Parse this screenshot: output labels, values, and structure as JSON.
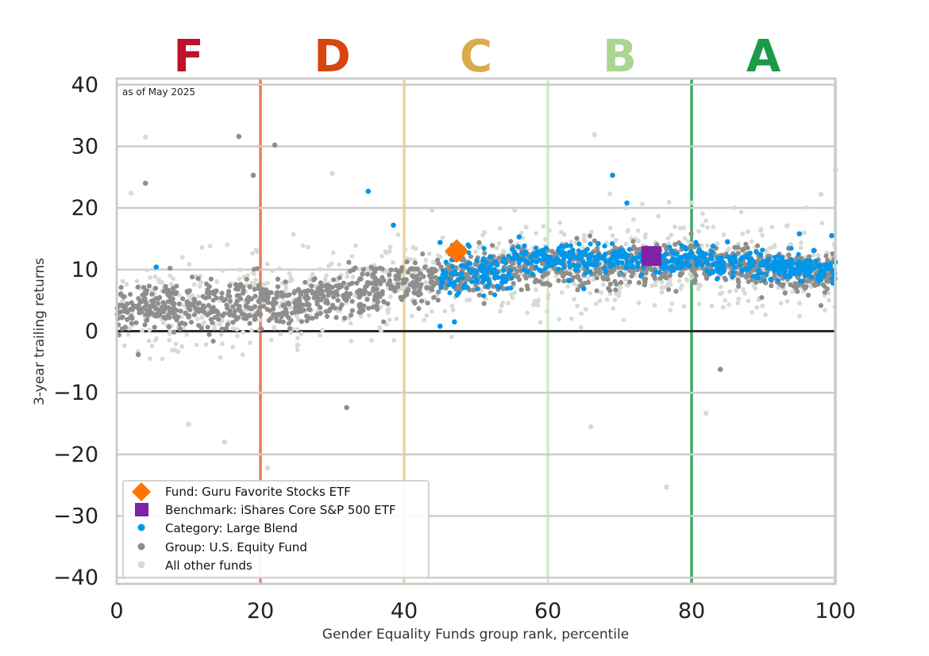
{
  "chart_data": {
    "type": "scatter",
    "xlabel": "Gender Equality Funds group rank, percentile",
    "ylabel": "3-year trailing returns",
    "xlim": [
      0,
      100
    ],
    "ylim": [
      -41,
      41
    ],
    "x_ticks": [
      0,
      20,
      40,
      60,
      80,
      100
    ],
    "y_ticks": [
      -40,
      -30,
      -20,
      -10,
      0,
      10,
      20,
      30,
      40
    ],
    "x_tick_labels": [
      "0",
      "20",
      "40",
      "60",
      "80",
      "100"
    ],
    "y_tick_labels": [
      "−40",
      "−30",
      "−20",
      "−10",
      "0",
      "10",
      "20",
      "30",
      "40"
    ],
    "grid": "horizontal",
    "annotation": "as of May 2025",
    "grade_bands": [
      {
        "label": "F",
        "from": 0,
        "to": 20,
        "color": "#c0102a",
        "line_color": "#ea7c60"
      },
      {
        "label": "D",
        "from": 20,
        "to": 40,
        "color": "#d9440f",
        "line_color": "#f0c98a"
      },
      {
        "label": "C",
        "from": 40,
        "to": 60,
        "color": "#d8ab4d",
        "line_color": "#cfe8c0"
      },
      {
        "label": "B",
        "from": 60,
        "to": 80,
        "color": "#a8d58f",
        "line_color": "#3dac5e"
      },
      {
        "label": "A",
        "from": 80,
        "to": 100,
        "color": "#1b9a48",
        "line_color": "#8fcf9a"
      }
    ],
    "band_lines": [
      20,
      40,
      60,
      80,
      100
    ],
    "legend_position": "lower-left",
    "series": [
      {
        "name": "Fund: Guru Favorite Stocks ETF",
        "marker": "diamond",
        "color": "#ff7300",
        "points": [
          [
            47.3,
            13.0
          ]
        ]
      },
      {
        "name": "Benchmark: iShares Core S&P 500 ETF",
        "marker": "square",
        "color": "#7e22a6",
        "points": [
          [
            74.4,
            12.2
          ]
        ]
      },
      {
        "name": "Category: Large Blend",
        "marker": "dot",
        "color": "#0096ea",
        "points": [
          [
            5.5,
            10.4
          ],
          [
            35,
            22.7
          ],
          [
            38.5,
            17.2
          ],
          [
            69,
            25.3
          ],
          [
            71,
            20.8
          ],
          [
            45,
            0.8
          ],
          [
            47,
            1.5
          ],
          [
            95,
            15.8
          ],
          [
            99.5,
            15.5
          ],
          [
            45,
            14.4
          ],
          [
            50,
            9.5
          ],
          [
            52,
            12.1
          ],
          [
            55,
            11.8
          ],
          [
            58,
            12.6
          ],
          [
            60,
            11.2
          ],
          [
            62,
            12.9
          ],
          [
            64,
            10.5
          ],
          [
            66,
            12.2
          ],
          [
            68,
            11.5
          ],
          [
            70,
            13.0
          ],
          [
            72,
            11.8
          ],
          [
            74,
            12.4
          ],
          [
            76,
            12.1
          ],
          [
            78,
            11.6
          ],
          [
            80,
            12.3
          ],
          [
            82,
            11.4
          ],
          [
            84,
            10.9
          ],
          [
            86,
            11.7
          ],
          [
            88,
            10.2
          ],
          [
            90,
            11.3
          ],
          [
            92,
            10.8
          ],
          [
            94,
            10.1
          ],
          [
            96,
            9.6
          ],
          [
            98,
            10.7
          ],
          [
            100,
            11.2
          ],
          [
            56,
            15.3
          ],
          [
            63,
            8.2
          ],
          [
            67,
            14.2
          ],
          [
            73,
            9.1
          ],
          [
            79,
            13.6
          ],
          [
            85,
            14.5
          ],
          [
            91,
            8.4
          ],
          [
            97,
            13.1
          ],
          [
            53,
            7.3
          ],
          [
            59,
            9.8
          ],
          [
            65,
            6.9
          ],
          [
            75,
            9.6
          ],
          [
            83,
            13.8
          ],
          [
            89,
            12.9
          ],
          [
            93,
            8.9
          ]
        ]
      },
      {
        "name": "Group: U.S. Equity Fund",
        "marker": "dot",
        "color": "#8e8e8c",
        "points": [
          [
            4,
            24
          ],
          [
            17,
            31.6
          ],
          [
            19,
            25.3
          ],
          [
            22,
            30.2
          ],
          [
            32,
            -12.4
          ],
          [
            84,
            -6.2
          ],
          [
            3,
            -3.8
          ],
          [
            10,
            2.3
          ],
          [
            18,
            4.1
          ],
          [
            28,
            6.3
          ],
          [
            42,
            5.9
          ],
          [
            48,
            11.6
          ],
          [
            61,
            12.5
          ],
          [
            70,
            9.2
          ],
          [
            80,
            11.3
          ],
          [
            90,
            8.8
          ],
          [
            99,
            8.1
          ]
        ]
      },
      {
        "name": "All other funds",
        "marker": "dot",
        "color": "#d6dbd4",
        "points": [
          [
            4,
            31.5
          ],
          [
            66.5,
            31.9
          ],
          [
            10,
            -15.1
          ],
          [
            21,
            -22.2
          ],
          [
            30,
            25.6
          ],
          [
            76.5,
            -25.3
          ],
          [
            82,
            -13.3
          ],
          [
            2,
            22.4
          ],
          [
            98,
            22.2
          ],
          [
            15,
            -18
          ],
          [
            66,
            -15.5
          ],
          [
            100,
            26.2
          ]
        ]
      }
    ]
  },
  "legend": {
    "fund": "Fund: Guru Favorite Stocks ETF",
    "benchmark": "Benchmark: iShares Core S&P 500 ETF",
    "category": "Category: Large Blend",
    "group": "Group: U.S. Equity Fund",
    "other": "All other funds"
  }
}
